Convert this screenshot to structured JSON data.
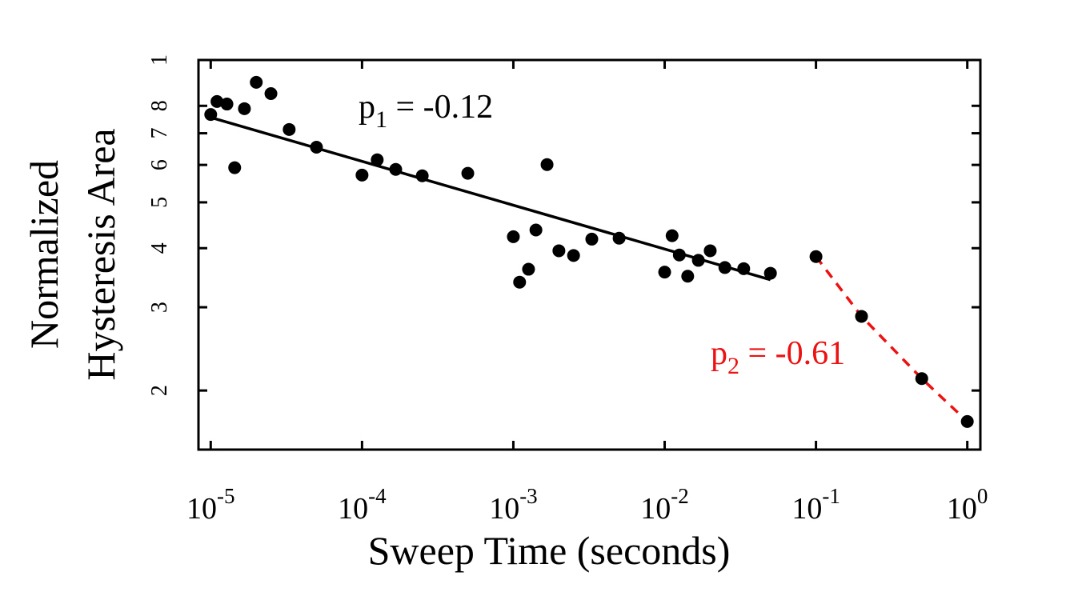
{
  "chart_data": {
    "type": "scatter",
    "x_label": "Sweep Time (seconds)",
    "y_label": [
      "Normalized",
      "Hysteresis Area"
    ],
    "x_log": true,
    "y_log": true,
    "xlim": [
      8.3e-06,
      1.22
    ],
    "ylim": [
      0.15,
      1
    ],
    "xticks": [
      {
        "value": 1e-05,
        "label": "10",
        "exponent": "-5"
      },
      {
        "value": 0.0001,
        "label": "10",
        "exponent": "-4"
      },
      {
        "value": 0.001,
        "label": "10",
        "exponent": "-3"
      },
      {
        "value": 0.01,
        "label": "10",
        "exponent": "-2"
      },
      {
        "value": 0.1,
        "label": "10",
        "exponent": "-1"
      },
      {
        "value": 1,
        "label": "10",
        "exponent": "0"
      }
    ],
    "yticks": [
      1,
      {
        "value": 0.8,
        "label": "8"
      },
      {
        "value": 0.7,
        "label": "7"
      },
      {
        "value": 0.6,
        "label": "6"
      },
      {
        "value": 0.5,
        "label": "5"
      },
      {
        "value": 0.4,
        "label": "4"
      },
      {
        "value": 0.3,
        "label": "3"
      },
      {
        "value": 0.2,
        "label": "2"
      }
    ],
    "series": [
      {
        "color": "#000000",
        "style": "markers",
        "x": [
          1e-05,
          1.1e-05,
          1.28e-05,
          1.44e-05,
          1.67e-05,
          2e-05,
          2.5e-05,
          3.3e-05,
          5e-05,
          0.0001,
          0.000126,
          0.000167,
          0.00025,
          0.0005,
          0.001,
          0.0011,
          0.00126,
          0.00141,
          0.00167,
          0.002,
          0.0025,
          0.0033,
          0.005,
          0.01,
          0.0112,
          0.0125,
          0.0142,
          0.0167,
          0.02,
          0.025,
          0.0333,
          0.05
        ],
        "values": [
          0.767,
          0.817,
          0.807,
          0.592,
          0.789,
          0.897,
          0.849,
          0.713,
          0.654,
          0.571,
          0.615,
          0.587,
          0.569,
          0.576,
          0.423,
          0.339,
          0.361,
          0.437,
          0.601,
          0.395,
          0.386,
          0.418,
          0.42,
          0.356,
          0.425,
          0.387,
          0.349,
          0.377,
          0.395,
          0.364,
          0.362,
          0.354
        ]
      },
      {
        "color": "#000000",
        "style": "solid",
        "x": [
          1e-05,
          0.05
        ],
        "values": [
          0.756,
          0.343
        ]
      },
      {
        "color": "#000000",
        "style": "markers",
        "x": [
          0.1,
          0.2,
          0.5,
          1
        ],
        "values": [
          0.384,
          0.287,
          0.212,
          0.172
        ]
      },
      {
        "color": "#ee1111",
        "style": "dashed",
        "x": [
          0.1,
          0.2,
          0.5,
          1
        ],
        "values": [
          0.384,
          0.287,
          0.212,
          0.172
        ]
      }
    ],
    "annotations": [
      {
        "text": "p",
        "subscript": "1",
        "rest": " = -0.12",
        "color": "#000000"
      },
      {
        "text": "p",
        "subscript": "2",
        "rest": " = -0.61",
        "color": "#ee1111"
      }
    ]
  }
}
